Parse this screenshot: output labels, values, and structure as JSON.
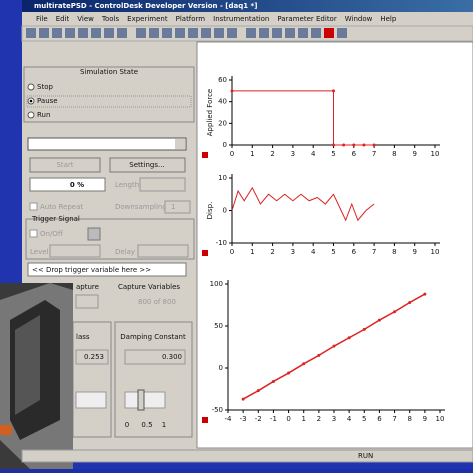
{
  "window": {
    "title": "multiratePSD - ControlDesk Developer Version - [daq1 *]",
    "menu": [
      "File",
      "Edit",
      "View",
      "Tools",
      "Experiment",
      "Platform",
      "Instrumentation",
      "Parameter Editor",
      "Window",
      "Help"
    ]
  },
  "left_panel": {
    "simulation_state": {
      "title": "Simulation State",
      "options": [
        "Stop",
        "Pause",
        "Run"
      ]
    },
    "buttons": [
      "Start",
      "Settings..."
    ],
    "progress": "0 %",
    "length_label": "Length",
    "auto_repeat": "Auto Repeat",
    "downsampling": "Downsampling",
    "downsampling_value": "1",
    "trigger": {
      "title": "Trigger Signal",
      "on_off": "On/Off",
      "level": "Level",
      "delay": "Delay"
    },
    "drop_hint": "<< Drop trigger variable here >>",
    "capture": "apture",
    "capture_variables": "Capture Variables",
    "capture_count": "800 of 800",
    "mass": "lass",
    "mass_value": "0.253",
    "damping": "Damping Constant",
    "damping_value": "0.300",
    "slider_ticks": [
      "0",
      "0.5",
      "1"
    ]
  },
  "plots": [
    {
      "ylabel": "Applied Force",
      "xlim": [
        0,
        10
      ],
      "ylim": [
        0,
        60
      ],
      "xticks": [
        0,
        1,
        2,
        3,
        4,
        5,
        6,
        7,
        8,
        9,
        10
      ],
      "yticks": [
        0,
        20,
        40,
        60
      ],
      "x": [
        0,
        5,
        5,
        5.5,
        6,
        6.5,
        7
      ],
      "values": [
        50,
        50,
        0,
        0,
        0,
        0,
        0
      ]
    },
    {
      "ylabel": "Disp.",
      "xlim": [
        0,
        10
      ],
      "ylim": [
        -10,
        10
      ],
      "xticks": [
        0,
        1,
        2,
        3,
        4,
        5,
        6,
        7,
        8,
        9,
        10
      ],
      "yticks": [
        -10,
        0,
        10
      ],
      "x": [
        0,
        0.3,
        0.6,
        1,
        1.4,
        1.8,
        2.2,
        2.6,
        3,
        3.4,
        3.8,
        4.2,
        4.6,
        5,
        5.3,
        5.6,
        5.9,
        6.2,
        6.6,
        7
      ],
      "values": [
        0,
        6,
        3,
        7,
        2,
        5,
        3,
        5,
        3,
        5,
        3,
        4,
        2,
        5,
        1,
        -3,
        2,
        -3,
        0,
        2
      ]
    },
    {
      "ylabel": null,
      "xlim": [
        -4,
        10
      ],
      "ylim": [
        -50,
        100
      ],
      "xticks": [
        -4,
        -3,
        -2,
        -1,
        0,
        1,
        2,
        3,
        4,
        5,
        6,
        7,
        8,
        9,
        10
      ],
      "yticks": [
        -50,
        0,
        50,
        100
      ],
      "x": [
        -3,
        -2,
        -1,
        0,
        1,
        2,
        3,
        4,
        5,
        6,
        7,
        8,
        9
      ],
      "values": [
        -37,
        -27,
        -16,
        -6,
        5,
        15,
        26,
        36,
        46,
        57,
        67,
        78,
        88
      ]
    }
  ],
  "status": "RUN"
}
